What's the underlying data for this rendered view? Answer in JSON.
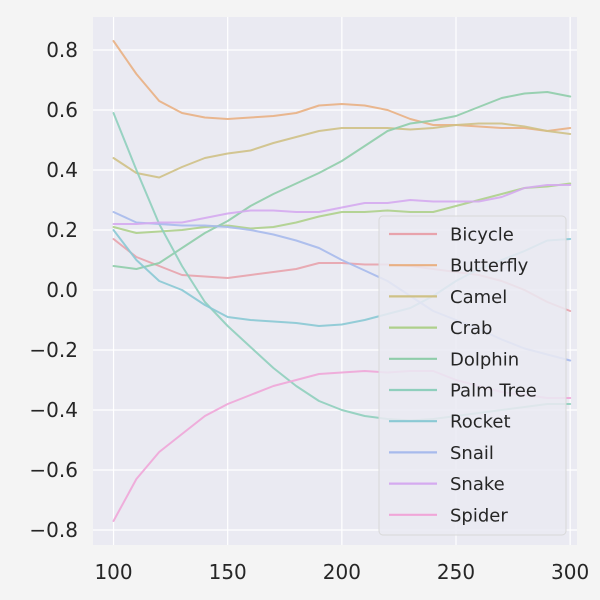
{
  "chart_data": {
    "type": "line",
    "title": "",
    "xlabel": "",
    "ylabel": "",
    "xlim": [
      91,
      303
    ],
    "ylim": [
      -0.85,
      0.91
    ],
    "xticks": [
      100,
      150,
      200,
      250,
      300
    ],
    "yticks": [
      -0.8,
      -0.6,
      -0.4,
      -0.2,
      0.0,
      0.2,
      0.4,
      0.6,
      0.8
    ],
    "xtick_labels": [
      "100",
      "150",
      "200",
      "250",
      "300"
    ],
    "ytick_labels": [
      "−0.8",
      "−0.6",
      "−0.4",
      "−0.2",
      "0.0",
      "0.2",
      "0.4",
      "0.6",
      "0.8"
    ],
    "grid": true,
    "legend_position": "lower-right",
    "x": [
      100,
      110,
      120,
      130,
      140,
      150,
      160,
      170,
      180,
      190,
      200,
      210,
      220,
      230,
      240,
      250,
      260,
      270,
      280,
      290,
      300
    ],
    "series": [
      {
        "name": "Bicycle",
        "color": "#e8a3ac",
        "values": [
          0.17,
          0.11,
          0.08,
          0.05,
          0.045,
          0.04,
          0.05,
          0.06,
          0.07,
          0.09,
          0.09,
          0.085,
          0.085,
          0.08,
          0.07,
          0.06,
          0.05,
          0.03,
          0.0,
          -0.04,
          -0.07
        ]
      },
      {
        "name": "Butterfly",
        "color": "#e9b083",
        "values": [
          0.83,
          0.72,
          0.63,
          0.59,
          0.575,
          0.57,
          0.575,
          0.58,
          0.59,
          0.615,
          0.62,
          0.615,
          0.6,
          0.57,
          0.55,
          0.55,
          0.545,
          0.54,
          0.54,
          0.53,
          0.54
        ]
      },
      {
        "name": "Camel",
        "color": "#cfc186",
        "values": [
          0.44,
          0.39,
          0.375,
          0.41,
          0.44,
          0.455,
          0.465,
          0.49,
          0.51,
          0.53,
          0.54,
          0.54,
          0.54,
          0.535,
          0.54,
          0.55,
          0.555,
          0.555,
          0.545,
          0.53,
          0.52
        ]
      },
      {
        "name": "Crab",
        "color": "#aed08b",
        "values": [
          0.21,
          0.19,
          0.195,
          0.2,
          0.21,
          0.215,
          0.205,
          0.21,
          0.225,
          0.245,
          0.26,
          0.26,
          0.265,
          0.26,
          0.26,
          0.28,
          0.3,
          0.32,
          0.34,
          0.345,
          0.355
        ]
      },
      {
        "name": "Dolphin",
        "color": "#8fcdaa",
        "values": [
          0.08,
          0.07,
          0.09,
          0.14,
          0.19,
          0.23,
          0.28,
          0.32,
          0.355,
          0.39,
          0.43,
          0.48,
          0.53,
          0.555,
          0.565,
          0.58,
          0.61,
          0.64,
          0.655,
          0.66,
          0.645
        ]
      },
      {
        "name": "Palm Tree",
        "color": "#8fcfbd",
        "values": [
          0.59,
          0.4,
          0.22,
          0.08,
          -0.04,
          -0.12,
          -0.19,
          -0.26,
          -0.32,
          -0.37,
          -0.4,
          -0.42,
          -0.43,
          -0.435,
          -0.43,
          -0.42,
          -0.41,
          -0.4,
          -0.39,
          -0.38,
          -0.38
        ]
      },
      {
        "name": "Rocket",
        "color": "#8ac9d4",
        "values": [
          0.2,
          0.1,
          0.03,
          0.0,
          -0.05,
          -0.09,
          -0.1,
          -0.105,
          -0.11,
          -0.12,
          -0.115,
          -0.1,
          -0.08,
          -0.06,
          -0.02,
          0.03,
          0.07,
          0.1,
          0.13,
          0.165,
          0.17
        ]
      },
      {
        "name": "Snail",
        "color": "#a7baec",
        "values": [
          0.26,
          0.225,
          0.22,
          0.215,
          0.215,
          0.21,
          0.2,
          0.185,
          0.165,
          0.14,
          0.1,
          0.065,
          0.03,
          -0.02,
          -0.07,
          -0.1,
          -0.13,
          -0.165,
          -0.195,
          -0.215,
          -0.235
        ]
      },
      {
        "name": "Snake",
        "color": "#d5aaf0",
        "values": [
          0.22,
          0.22,
          0.225,
          0.225,
          0.24,
          0.255,
          0.265,
          0.265,
          0.26,
          0.26,
          0.275,
          0.29,
          0.29,
          0.3,
          0.295,
          0.295,
          0.295,
          0.31,
          0.34,
          0.35,
          0.35
        ]
      },
      {
        "name": "Spider",
        "color": "#f0a6d8",
        "values": [
          -0.77,
          -0.63,
          -0.54,
          -0.48,
          -0.42,
          -0.38,
          -0.35,
          -0.32,
          -0.3,
          -0.28,
          -0.275,
          -0.27,
          -0.275,
          -0.27,
          -0.27,
          -0.3,
          -0.32,
          -0.34,
          -0.35,
          -0.36,
          -0.36
        ]
      }
    ]
  }
}
